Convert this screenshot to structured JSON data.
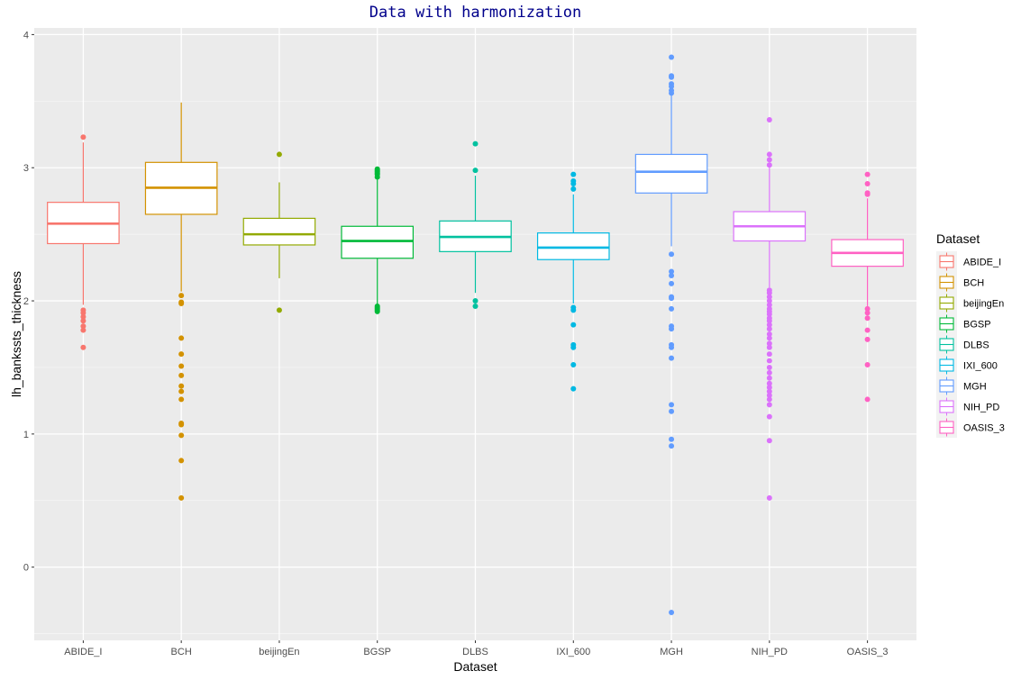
{
  "chart_data": {
    "type": "box",
    "title": "Data with harmonization",
    "xlabel": "Dataset",
    "ylabel": "lh_bankssts_thickness",
    "ylim": [
      -0.55,
      4.05
    ],
    "yticks": [
      0,
      1,
      2,
      3,
      4
    ],
    "grid": true,
    "legend": {
      "title": "Dataset",
      "position": "right"
    },
    "categories": [
      "ABIDE_I",
      "BCH",
      "beijingEn",
      "BGSP",
      "DLBS",
      "IXI_600",
      "MGH",
      "NIH_PD",
      "OASIS_3"
    ],
    "series": [
      {
        "name": "ABIDE_I",
        "color": "#F8766D",
        "q1": 2.43,
        "median": 2.58,
        "q3": 2.74,
        "whisker_low": 1.97,
        "whisker_high": 3.19,
        "outliers": [
          3.23,
          1.93,
          1.91,
          1.88,
          1.85,
          1.81,
          1.78,
          1.65
        ]
      },
      {
        "name": "BCH",
        "color": "#D39200",
        "q1": 2.65,
        "median": 2.85,
        "q3": 3.04,
        "whisker_low": 2.07,
        "whisker_high": 3.49,
        "outliers": [
          2.04,
          1.99,
          1.98,
          1.72,
          1.6,
          1.51,
          1.44,
          1.36,
          1.32,
          1.26,
          1.08,
          1.07,
          0.99,
          0.8,
          0.52
        ]
      },
      {
        "name": "beijingEn",
        "color": "#93AA00",
        "q1": 2.42,
        "median": 2.5,
        "q3": 2.62,
        "whisker_low": 2.17,
        "whisker_high": 2.89,
        "outliers": [
          3.1,
          1.93
        ]
      },
      {
        "name": "BGSP",
        "color": "#00BA38",
        "q1": 2.32,
        "median": 2.45,
        "q3": 2.56,
        "whisker_low": 1.97,
        "whisker_high": 2.91,
        "outliers": [
          2.99,
          2.98,
          2.97,
          2.96,
          2.95,
          2.93,
          1.96,
          1.95,
          1.94,
          1.93,
          1.92
        ]
      },
      {
        "name": "DLBS",
        "color": "#00C19F",
        "q1": 2.37,
        "median": 2.48,
        "q3": 2.6,
        "whisker_low": 2.06,
        "whisker_high": 2.94,
        "outliers": [
          3.18,
          2.98,
          2.0,
          1.96
        ]
      },
      {
        "name": "IXI_600",
        "color": "#00B9E3",
        "q1": 2.31,
        "median": 2.4,
        "q3": 2.51,
        "whisker_low": 1.98,
        "whisker_high": 2.8,
        "outliers": [
          2.95,
          2.9,
          2.88,
          2.84,
          1.95,
          1.93,
          1.82,
          1.67,
          1.65,
          1.52,
          1.34
        ]
      },
      {
        "name": "MGH",
        "color": "#619CFF",
        "q1": 2.81,
        "median": 2.97,
        "q3": 3.1,
        "whisker_low": 2.41,
        "whisker_high": 3.55,
        "outliers": [
          3.83,
          3.69,
          3.68,
          3.63,
          3.61,
          3.58,
          3.56,
          2.35,
          2.22,
          2.19,
          2.13,
          2.03,
          2.02,
          1.94,
          1.81,
          1.79,
          1.67,
          1.65,
          1.57,
          1.22,
          1.17,
          0.96,
          0.91,
          -0.34
        ]
      },
      {
        "name": "NIH_PD",
        "color": "#DB72FB",
        "q1": 2.45,
        "median": 2.56,
        "q3": 2.67,
        "whisker_low": 2.1,
        "whisker_high": 3.0,
        "outliers": [
          3.36,
          3.1,
          3.06,
          3.02,
          2.08,
          2.06,
          2.03,
          2.0,
          1.97,
          1.94,
          1.92,
          1.9,
          1.87,
          1.85,
          1.82,
          1.79,
          1.75,
          1.72,
          1.68,
          1.65,
          1.6,
          1.55,
          1.5,
          1.46,
          1.42,
          1.38,
          1.35,
          1.32,
          1.29,
          1.26,
          1.22,
          1.13,
          0.95,
          0.52
        ]
      },
      {
        "name": "OASIS_3",
        "color": "#FF61C3",
        "q1": 2.26,
        "median": 2.36,
        "q3": 2.46,
        "whisker_low": 1.96,
        "whisker_high": 2.77,
        "outliers": [
          2.95,
          2.88,
          2.81,
          2.8,
          1.94,
          1.91,
          1.87,
          1.78,
          1.71,
          1.52,
          1.26
        ]
      }
    ]
  }
}
